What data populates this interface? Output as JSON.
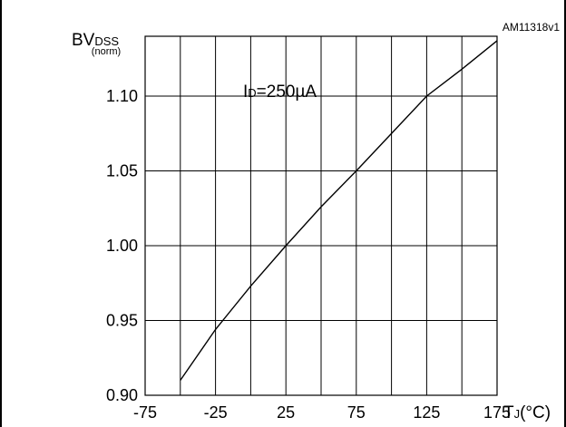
{
  "figure_id": "AM11318v1",
  "annotation": {
    "main": "I",
    "sub": "D",
    "rest": "=250µA"
  },
  "ylabel": {
    "main": "BV",
    "sub": "DSS",
    "unit": "(norm)"
  },
  "xlabel": {
    "main": "T",
    "sub": "J",
    "rest": "(°C)"
  },
  "chart_data": {
    "type": "line",
    "title": "",
    "xlim": [
      -75,
      175
    ],
    "ylim": [
      0.9,
      1.14
    ],
    "x_ticks": [
      -75,
      -25,
      25,
      75,
      125,
      175
    ],
    "x_tick_labels": [
      "-75",
      "-25",
      "25",
      "75",
      "125",
      "175"
    ],
    "x_minor_grid": [
      -50,
      0,
      50,
      100,
      150
    ],
    "y_ticks": [
      0.9,
      0.95,
      1.0,
      1.05,
      1.1
    ],
    "y_tick_labels": [
      "0.90",
      "0.95",
      "1.00",
      "1.05",
      "1.10"
    ],
    "grid": true,
    "series": [
      {
        "color": "#000000",
        "x": [
          -50,
          -25,
          0,
          25,
          50,
          75,
          100,
          125,
          150,
          175
        ],
        "y": [
          0.91,
          0.944,
          0.973,
          1.0,
          1.026,
          1.05,
          1.075,
          1.1,
          1.118,
          1.137
        ]
      }
    ]
  }
}
